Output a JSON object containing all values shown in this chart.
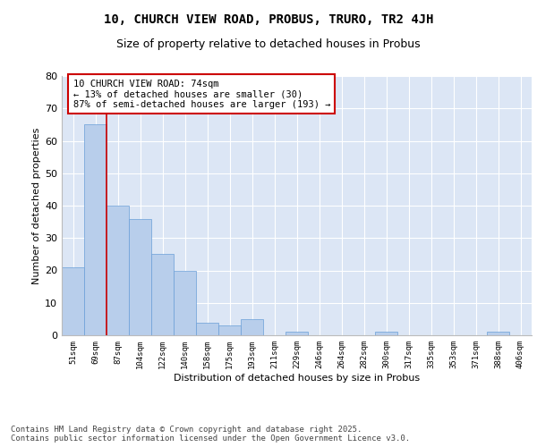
{
  "title": "10, CHURCH VIEW ROAD, PROBUS, TRURO, TR2 4JH",
  "subtitle": "Size of property relative to detached houses in Probus",
  "xlabel": "Distribution of detached houses by size in Probus",
  "ylabel": "Number of detached properties",
  "categories": [
    "51sqm",
    "69sqm",
    "87sqm",
    "104sqm",
    "122sqm",
    "140sqm",
    "158sqm",
    "175sqm",
    "193sqm",
    "211sqm",
    "229sqm",
    "246sqm",
    "264sqm",
    "282sqm",
    "300sqm",
    "317sqm",
    "335sqm",
    "353sqm",
    "371sqm",
    "388sqm",
    "406sqm"
  ],
  "values": [
    21,
    65,
    40,
    36,
    25,
    20,
    4,
    3,
    5,
    0,
    1,
    0,
    0,
    0,
    1,
    0,
    0,
    0,
    0,
    1,
    0
  ],
  "bar_color": "#b8ceeb",
  "bar_edge_color": "#6a9fd8",
  "background_color": "#dce6f5",
  "grid_color": "#ffffff",
  "vline_x": 1.5,
  "vline_color": "#cc0000",
  "annotation_text": "10 CHURCH VIEW ROAD: 74sqm\n← 13% of detached houses are smaller (30)\n87% of semi-detached houses are larger (193) →",
  "annotation_box_facecolor": "#ffffff",
  "annotation_box_edge_color": "#cc0000",
  "ylim": [
    0,
    80
  ],
  "yticks": [
    0,
    10,
    20,
    30,
    40,
    50,
    60,
    70,
    80
  ],
  "footer": "Contains HM Land Registry data © Crown copyright and database right 2025.\nContains public sector information licensed under the Open Government Licence v3.0.",
  "title_fontsize": 10,
  "subtitle_fontsize": 9,
  "annotation_fontsize": 7.5,
  "footer_fontsize": 6.5,
  "fig_facecolor": "#ffffff"
}
